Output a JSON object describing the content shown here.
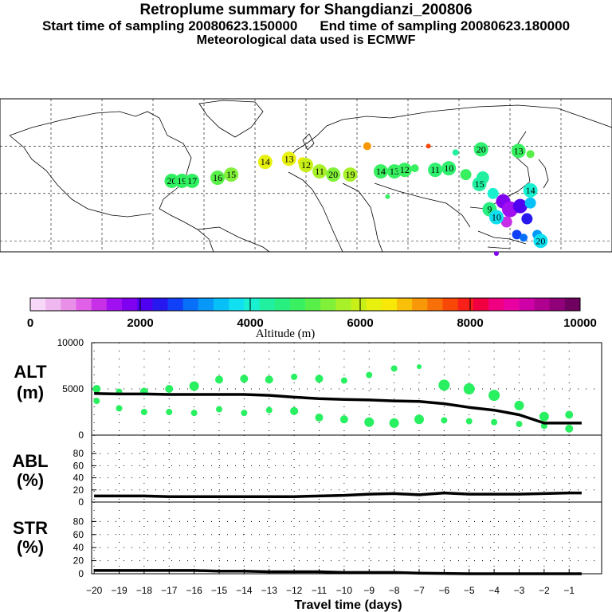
{
  "title": {
    "line1": "Retroplume summary for Shangdianzi_200806",
    "line2a": "Start time of sampling 20080623.150000",
    "line2b": "End time of sampling 20080623.180000",
    "line3": "Meteorological data used is ECMWF"
  },
  "colorbar": {
    "colors": [
      "#f8d8f8",
      "#f0b8f0",
      "#e890e8",
      "#e060e8",
      "#c830e8",
      "#a010f0",
      "#8000f0",
      "#5000f0",
      "#2818f0",
      "#1040f8",
      "#0870f8",
      "#0898f8",
      "#08c0f8",
      "#10e0f0",
      "#18f0d0",
      "#20f0a0",
      "#28f080",
      "#38f060",
      "#58f048",
      "#80f038",
      "#a8f028",
      "#c8f018",
      "#e8f010",
      "#f8e808",
      "#f8c008",
      "#f89808",
      "#f87008",
      "#f84808",
      "#f82018",
      "#f00040",
      "#f00080",
      "#e800a0",
      "#d000a8",
      "#b00090",
      "#900078",
      "#700060"
    ],
    "labels": [
      "0",
      "2000",
      "4000",
      "6000",
      "8000",
      "10000"
    ],
    "title": "Altitude (m)"
  },
  "chart_data": [
    {
      "type": "scatter",
      "panel": "ALT",
      "ylabel": "ALT",
      "ylabel_unit": "(m)",
      "ylim": [
        0,
        10000
      ],
      "yticks": [
        "10000",
        "5000",
        "0"
      ],
      "ytick_values": [
        10000,
        5000,
        0
      ],
      "mean_line": {
        "x": [
          -20,
          -19,
          -18,
          -17,
          -16,
          -15,
          -14,
          -13,
          -12,
          -11,
          -10,
          -9,
          -8,
          -7,
          -6,
          -5,
          -4,
          -3,
          -2,
          -1,
          -0.5
        ],
        "y": [
          4500,
          4450,
          4450,
          4400,
          4400,
          4400,
          4400,
          4300,
          4100,
          3950,
          3850,
          3800,
          3700,
          3650,
          3400,
          3000,
          2700,
          2200,
          1300,
          1300,
          1300
        ]
      },
      "points": {
        "x": [
          -19.9,
          -19.9,
          -19,
          -19,
          -18,
          -18,
          -17,
          -17,
          -16,
          -16,
          -15,
          -15,
          -14,
          -14,
          -13,
          -13,
          -12,
          -12,
          -11,
          -11,
          -10,
          -10,
          -9,
          -9,
          -8,
          -8,
          -7,
          -7,
          -6,
          -6,
          -5,
          -5,
          -4,
          -4,
          -3,
          -3,
          -2,
          -2,
          -1,
          -1
        ],
        "y": [
          5000,
          3700,
          4700,
          2900,
          4700,
          2500,
          5000,
          2500,
          5300,
          2400,
          6000,
          2800,
          6100,
          2400,
          6000,
          2700,
          6300,
          2600,
          6100,
          1900,
          5900,
          1700,
          6500,
          1400,
          7200,
          1300,
          7400,
          1700,
          5400,
          1600,
          5000,
          1500,
          4300,
          1400,
          3200,
          1200,
          2000,
          1000,
          2200,
          700
        ],
        "sizes": [
          5,
          4,
          4,
          4,
          5,
          4,
          5,
          4,
          6,
          4,
          5,
          4,
          5,
          4,
          5,
          4,
          4,
          5,
          5,
          5,
          4,
          5,
          4,
          6,
          4,
          6,
          3,
          6,
          7,
          4,
          7,
          4,
          7,
          4,
          6,
          4,
          6,
          4,
          5,
          5
        ]
      }
    },
    {
      "type": "line",
      "panel": "ABL",
      "ylabel": "ABL",
      "ylabel_unit": "(%)",
      "ylim": [
        0,
        100
      ],
      "yticks": [
        "80",
        "60",
        "40",
        "20",
        "0"
      ],
      "ytick_values": [
        80,
        60,
        40,
        20,
        0
      ],
      "x": [
        -20,
        -19,
        -18,
        -17,
        -16,
        -15,
        -14,
        -13,
        -12,
        -11,
        -10,
        -9,
        -8,
        -7,
        -6,
        -5,
        -4,
        -3,
        -2,
        -1,
        -0.5
      ],
      "y": [
        10,
        10,
        10,
        9,
        9,
        9,
        9,
        9,
        9,
        10,
        11,
        13,
        14,
        12,
        15,
        13,
        13,
        13,
        14,
        15,
        15
      ]
    },
    {
      "type": "line",
      "panel": "STR",
      "ylabel": "STR",
      "ylabel_unit": "(%)",
      "ylim": [
        0,
        100
      ],
      "yticks": [
        "80",
        "60",
        "40",
        "20",
        "0"
      ],
      "ytick_values": [
        80,
        60,
        40,
        20,
        0
      ],
      "x": [
        -20,
        -19,
        -18,
        -17,
        -16,
        -15,
        -14,
        -13,
        -12,
        -11,
        -10,
        -9,
        -8,
        -7,
        -6,
        -5,
        -4,
        -3,
        -2,
        -1,
        -0.5
      ],
      "y": [
        5,
        5,
        5,
        5,
        5,
        4,
        4,
        3,
        3,
        3,
        2,
        2,
        2,
        1,
        0.5,
        0,
        0,
        0,
        0,
        0,
        0
      ]
    }
  ],
  "xaxis": {
    "xlabel": "Travel time (days)",
    "ticks": [
      "−20",
      "−19",
      "−18",
      "−17",
      "−16",
      "−15",
      "−14",
      "−13",
      "−12",
      "−11",
      "−10",
      "−9",
      "−8",
      "−7",
      "−6",
      "−5",
      "−4",
      "−3",
      "−2",
      "−1"
    ],
    "tick_values": [
      -20,
      -19,
      -18,
      -17,
      -16,
      -15,
      -14,
      -13,
      -12,
      -11,
      -10,
      -9,
      -8,
      -7,
      -6,
      -5,
      -4,
      -3,
      -2,
      -1
    ],
    "xlim": [
      -20.1,
      0.3
    ]
  },
  "map": {
    "labels": [
      {
        "text": "20",
        "lon": -79,
        "lat": 38,
        "color": "#30f060"
      },
      {
        "text": "19",
        "lon": -73,
        "lat": 38,
        "color": "#30f060"
      },
      {
        "text": "17",
        "lon": -67,
        "lat": 38,
        "color": "#30f060"
      },
      {
        "text": "16",
        "lon": -52,
        "lat": 40,
        "color": "#58f048"
      },
      {
        "text": "15",
        "lon": -44,
        "lat": 42,
        "color": "#80f038"
      },
      {
        "text": "14",
        "lon": -24,
        "lat": 50,
        "color": "#e8f010"
      },
      {
        "text": "13",
        "lon": -10,
        "lat": 52,
        "color": "#e8f010"
      },
      {
        "text": "12",
        "lon": 0,
        "lat": 48,
        "color": "#c8f018"
      },
      {
        "text": "11",
        "lon": 8,
        "lat": 44,
        "color": "#a8f028"
      },
      {
        "text": "20",
        "lon": 16,
        "lat": 42,
        "color": "#80f038"
      },
      {
        "text": "19",
        "lon": 26,
        "lat": 42,
        "color": "#a8f028"
      },
      {
        "text": "14",
        "lon": 44,
        "lat": 44,
        "color": "#38f060"
      },
      {
        "text": "13",
        "lon": 52,
        "lat": 44,
        "color": "#38f060"
      },
      {
        "text": "12",
        "lon": 58,
        "lat": 45,
        "color": "#38f060"
      },
      {
        "text": "11",
        "lon": 76,
        "lat": 45,
        "color": "#30f070"
      },
      {
        "text": "10",
        "lon": 84,
        "lat": 46,
        "color": "#30f070"
      },
      {
        "text": "20",
        "lon": 103,
        "lat": 58,
        "color": "#30f070"
      },
      {
        "text": "13",
        "lon": 125,
        "lat": 57,
        "color": "#38f060"
      },
      {
        "text": "14",
        "lon": 132,
        "lat": 32,
        "color": "#18f0d0"
      },
      {
        "text": "9",
        "lon": 108,
        "lat": 20,
        "color": "#28f080"
      },
      {
        "text": "10",
        "lon": 112,
        "lat": 15,
        "color": "#10e0f0"
      },
      {
        "text": "20",
        "lon": 138,
        "lat": 0,
        "color": "#10e0f0"
      },
      {
        "text": "15",
        "lon": 102,
        "lat": 36,
        "color": "#20f0a0"
      }
    ],
    "blobs": [
      {
        "lon": 116,
        "lat": 25,
        "r": 9,
        "color": "#8000f0"
      },
      {
        "lon": 120,
        "lat": 20,
        "r": 10,
        "color": "#a010f0"
      },
      {
        "lon": 126,
        "lat": 22,
        "r": 9,
        "color": "#5000f0"
      },
      {
        "lon": 130,
        "lat": 14,
        "r": 7,
        "color": "#2818f0"
      },
      {
        "lon": 118,
        "lat": 12,
        "r": 7,
        "color": "#c830e8"
      },
      {
        "lon": 124,
        "lat": 4,
        "r": 6,
        "color": "#1040f8"
      },
      {
        "lon": 110,
        "lat": 30,
        "r": 7,
        "color": "#18f0d0"
      },
      {
        "lon": 104,
        "lat": 40,
        "r": 8,
        "color": "#20f0a0"
      },
      {
        "lon": 94,
        "lat": 42,
        "r": 7,
        "color": "#38f060"
      },
      {
        "lon": 132,
        "lat": 24,
        "r": 7,
        "color": "#08c0f8"
      },
      {
        "lon": 136,
        "lat": 4,
        "r": 6,
        "color": "#0898f8"
      },
      {
        "lon": 128,
        "lat": 2,
        "r": 5,
        "color": "#0870f8"
      },
      {
        "lon": 36,
        "lat": 60,
        "r": 5,
        "color": "#f89808"
      },
      {
        "lon": -2,
        "lat": 50,
        "r": 6,
        "color": "#f8e808"
      },
      {
        "lon": 72,
        "lat": 60,
        "r": 3,
        "color": "#f84808"
      },
      {
        "lon": 48,
        "lat": 28,
        "r": 3,
        "color": "#38f060"
      },
      {
        "lon": 112,
        "lat": -8,
        "r": 3,
        "color": "#8000f0"
      },
      {
        "lon": 88,
        "lat": 56,
        "r": 4,
        "color": "#20f0a0"
      },
      {
        "lon": 132,
        "lat": 55,
        "r": 5,
        "color": "#58f048"
      },
      {
        "lon": 64,
        "lat": 46,
        "r": 5,
        "color": "#38f060"
      }
    ]
  }
}
